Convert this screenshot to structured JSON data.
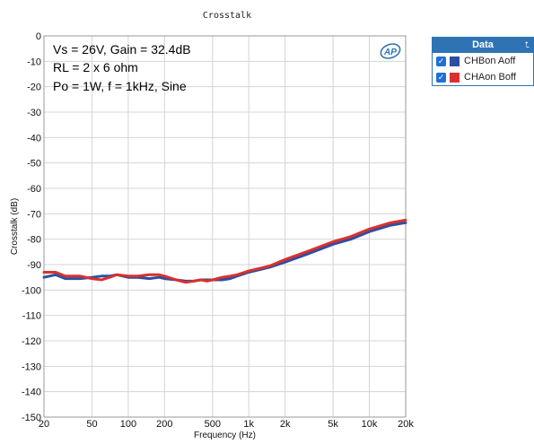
{
  "colors": {
    "series1": "#2b4fa0",
    "series2": "#d9312f",
    "grid": "#d4d4d4",
    "legend_header": "#2e74b5"
  },
  "logo": "AP",
  "annotation": [
    "Vs = 26V, Gain = 32.4dB",
    "RL = 2 x 6 ohm",
    "Po = 1W, f = 1kHz, Sine"
  ],
  "legend": {
    "title": "Data",
    "pin_icon": "pin-icon",
    "items": [
      {
        "label": "CHBon Aoff",
        "checked": true
      },
      {
        "label": "CHAon Boff",
        "checked": true
      }
    ]
  },
  "chart_data": {
    "type": "line",
    "title": "Crosstalk",
    "xlabel": "Frequency (Hz)",
    "ylabel": "Crosstalk (dB)",
    "xscale": "log",
    "xlim": [
      20,
      20000
    ],
    "ylim": [
      -150,
      0
    ],
    "xticks": [
      20,
      50,
      100,
      200,
      500,
      1000,
      2000,
      5000,
      10000,
      20000
    ],
    "xticklabels": [
      "20",
      "50",
      "100",
      "200",
      "500",
      "1k",
      "2k",
      "5k",
      "10k",
      "20k"
    ],
    "yticks": [
      0,
      -10,
      -20,
      -30,
      -40,
      -50,
      -60,
      -70,
      -80,
      -90,
      -100,
      -110,
      -120,
      -130,
      -140,
      -150
    ],
    "grid": true,
    "legend_position": "outside-right",
    "x": [
      20,
      25,
      30,
      40,
      50,
      60,
      70,
      80,
      100,
      120,
      150,
      180,
      200,
      250,
      300,
      350,
      400,
      450,
      500,
      600,
      700,
      800,
      1000,
      1500,
      2000,
      3000,
      5000,
      7000,
      10000,
      15000,
      20000
    ],
    "series": [
      {
        "name": "CHBon Aoff",
        "values": [
          -95,
          -94,
          -95.5,
          -95.5,
          -95,
          -94.5,
          -94.5,
          -94,
          -95,
          -95,
          -95.5,
          -95,
          -95.5,
          -96,
          -96.5,
          -96.5,
          -96,
          -96,
          -96,
          -96,
          -95.5,
          -94.5,
          -93,
          -91,
          -89,
          -86,
          -82,
          -80,
          -77,
          -74.5,
          -73.5
        ]
      },
      {
        "name": "CHAon Boff",
        "values": [
          -93,
          -93,
          -94.5,
          -94.5,
          -95.5,
          -96,
          -95,
          -94,
          -94.5,
          -94.5,
          -94,
          -94,
          -94.5,
          -96,
          -97,
          -96.5,
          -96,
          -96.5,
          -96,
          -95,
          -94.5,
          -94,
          -92.5,
          -90.5,
          -88,
          -85,
          -81,
          -79,
          -76,
          -73.5,
          -72.5
        ]
      }
    ]
  }
}
